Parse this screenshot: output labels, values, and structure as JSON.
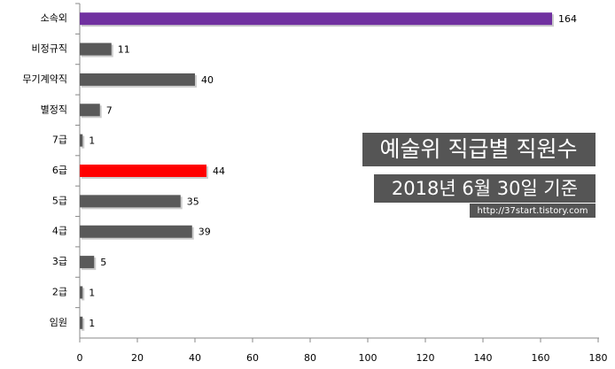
{
  "chart_data": {
    "type": "bar",
    "orientation": "horizontal",
    "title": "예술위 직급별 직원수",
    "subtitle": "2018년 6월 30일 기준",
    "source": "http://37start.tistory.com",
    "categories": [
      "소속외",
      "비정규직",
      "무기계약직",
      "별정직",
      "7급",
      "6급",
      "5급",
      "4급",
      "3급",
      "2급",
      "임원"
    ],
    "values": [
      164,
      11,
      40,
      7,
      1,
      44,
      35,
      39,
      5,
      1,
      1
    ],
    "colors": [
      "#7030a0",
      "#595959",
      "#595959",
      "#595959",
      "#595959",
      "#ff0000",
      "#595959",
      "#595959",
      "#595959",
      "#595959",
      "#595959"
    ],
    "xlim": [
      0,
      180
    ],
    "xticks": [
      0,
      20,
      40,
      60,
      80,
      100,
      120,
      140,
      160,
      180
    ]
  }
}
